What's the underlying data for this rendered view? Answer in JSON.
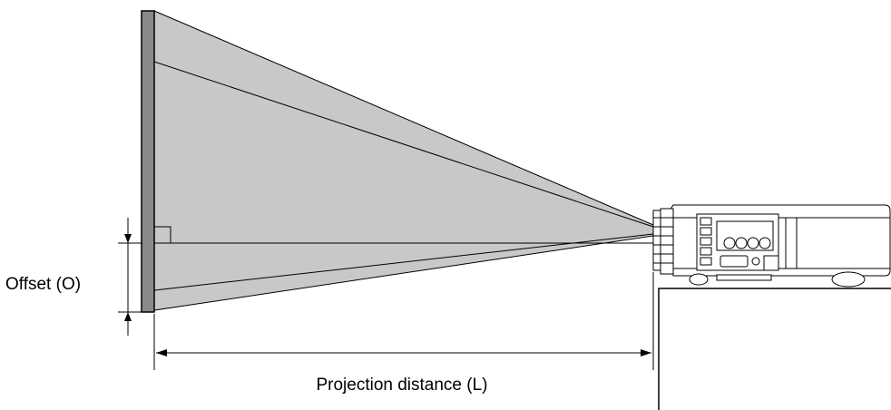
{
  "labels": {
    "offset": "Offset (O)",
    "distance": "Projection distance (L)"
  },
  "colors": {
    "beam": "#c8c8c8",
    "screen": "#8a8a8a",
    "line": "#000000"
  },
  "icons": [
    "screen-icon",
    "projector-icon",
    "table-icon"
  ]
}
